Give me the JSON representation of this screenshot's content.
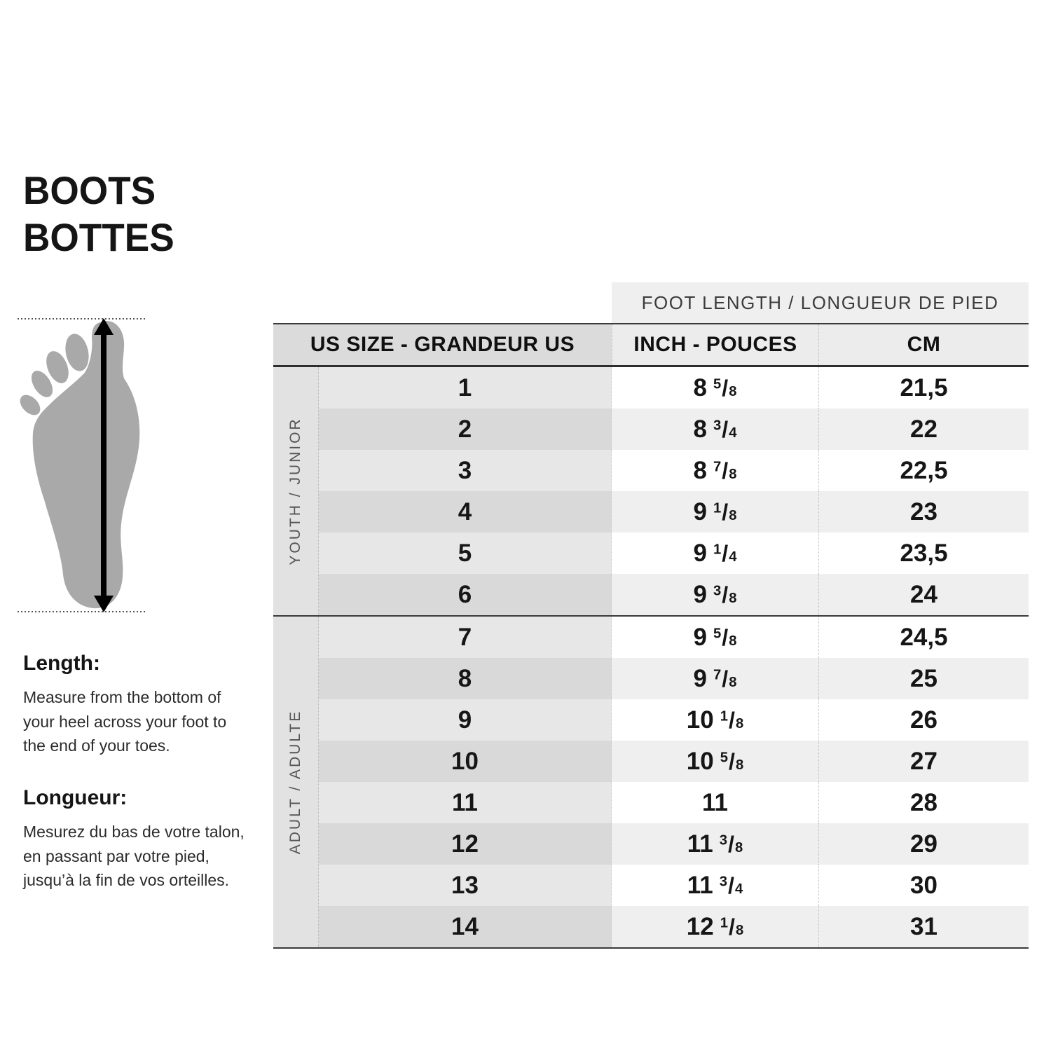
{
  "title": {
    "line1": "BOOTS",
    "line2": "BOTTES"
  },
  "diagram": {
    "icon": "foot-outline",
    "foot_color": "#a9a9a9",
    "arrow_color": "#000000",
    "dotted_line_color": "#555555"
  },
  "instructions": {
    "en": {
      "heading": "Length:",
      "body": "Measure from the bottom of your heel across your foot to the end of your toes."
    },
    "fr": {
      "heading": "Longueur:",
      "body": "Mesurez du bas de votre talon, en passant par votre pied, jusqu’à la fin de vos orteilles."
    }
  },
  "table": {
    "banner": "FOOT LENGTH / LONGUEUR DE PIED",
    "headers": {
      "us": "US SIZE - GRANDEUR US",
      "inch": "INCH - POUCES",
      "cm": "CM"
    },
    "groups": [
      {
        "label": "YOUTH / JUNIOR"
      },
      {
        "label": "ADULT / ADULTE"
      }
    ],
    "rows": [
      {
        "us": "1",
        "inch": {
          "w": "8",
          "n": "5",
          "d": "8"
        },
        "cm": "21,5"
      },
      {
        "us": "2",
        "inch": {
          "w": "8",
          "n": "3",
          "d": "4"
        },
        "cm": "22"
      },
      {
        "us": "3",
        "inch": {
          "w": "8",
          "n": "7",
          "d": "8"
        },
        "cm": "22,5"
      },
      {
        "us": "4",
        "inch": {
          "w": "9",
          "n": "1",
          "d": "8"
        },
        "cm": "23"
      },
      {
        "us": "5",
        "inch": {
          "w": "9",
          "n": "1",
          "d": "4"
        },
        "cm": "23,5"
      },
      {
        "us": "6",
        "inch": {
          "w": "9",
          "n": "3",
          "d": "8"
        },
        "cm": "24"
      },
      {
        "us": "7",
        "inch": {
          "w": "9",
          "n": "5",
          "d": "8"
        },
        "cm": "24,5"
      },
      {
        "us": "8",
        "inch": {
          "w": "9",
          "n": "7",
          "d": "8"
        },
        "cm": "25"
      },
      {
        "us": "9",
        "inch": {
          "w": "10",
          "n": "1",
          "d": "8"
        },
        "cm": "26"
      },
      {
        "us": "10",
        "inch": {
          "w": "10",
          "n": "5",
          "d": "8"
        },
        "cm": "27"
      },
      {
        "us": "11",
        "inch": {
          "w": "11"
        },
        "cm": "28"
      },
      {
        "us": "12",
        "inch": {
          "w": "11",
          "n": "3",
          "d": "8"
        },
        "cm": "29"
      },
      {
        "us": "13",
        "inch": {
          "w": "11",
          "n": "3",
          "d": "4"
        },
        "cm": "30"
      },
      {
        "us": "14",
        "inch": {
          "w": "12",
          "n": "1",
          "d": "8"
        },
        "cm": "31"
      }
    ],
    "colors": {
      "row_odd_us": "#e7e7e7",
      "row_odd_measure": "#ffffff",
      "row_even_us": "#d9d9d9",
      "row_even_measure": "#efefef",
      "header_us": "#dbdbdb",
      "header_measure": "#ececec",
      "banner_bg": "#efefef",
      "label_column_bg": "#e2e2e2",
      "rule": "#3a3a3a"
    }
  },
  "chart_data": {
    "type": "table",
    "title": "BOOTS / BOTTES size chart",
    "columns": [
      "US SIZE - GRANDEUR US",
      "INCH - POUCES",
      "CM"
    ],
    "row_groups": [
      {
        "group": "YOUTH / JUNIOR",
        "rows": [
          [
            "1",
            "8 5/8",
            "21,5"
          ],
          [
            "2",
            "8 3/4",
            "22"
          ],
          [
            "3",
            "8 7/8",
            "22,5"
          ],
          [
            "4",
            "9 1/8",
            "23"
          ],
          [
            "5",
            "9 1/4",
            "23,5"
          ],
          [
            "6",
            "9 3/8",
            "24"
          ]
        ]
      },
      {
        "group": "ADULT / ADULTE",
        "rows": [
          [
            "7",
            "9 5/8",
            "24,5"
          ],
          [
            "8",
            "9 7/8",
            "25"
          ],
          [
            "9",
            "10 1/8",
            "26"
          ],
          [
            "10",
            "10 5/8",
            "27"
          ],
          [
            "11",
            "11",
            "28"
          ],
          [
            "12",
            "11 3/8",
            "29"
          ],
          [
            "13",
            "11 3/4",
            "30"
          ],
          [
            "14",
            "12 1/8",
            "31"
          ]
        ]
      }
    ],
    "banner": "FOOT LENGTH / LONGUEUR DE PIED"
  }
}
